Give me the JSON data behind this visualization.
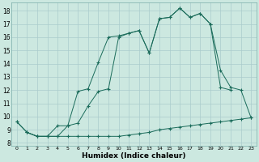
{
  "xlabel": "Humidex (Indice chaleur)",
  "background_color": "#cce8e0",
  "grid_color": "#aacccc",
  "line_color": "#1a6b5a",
  "xlim": [
    -0.5,
    23.5
  ],
  "ylim": [
    7.8,
    18.6
  ],
  "xticks": [
    0,
    1,
    2,
    3,
    4,
    5,
    6,
    7,
    8,
    9,
    10,
    11,
    12,
    13,
    14,
    15,
    16,
    17,
    18,
    19,
    20,
    21,
    22,
    23
  ],
  "yticks": [
    8,
    9,
    10,
    11,
    12,
    13,
    14,
    15,
    16,
    17,
    18
  ],
  "lineA_x": [
    0,
    1,
    2,
    3,
    4,
    5,
    6,
    7,
    8,
    9,
    10,
    11,
    12,
    13,
    14,
    15,
    16,
    17,
    18,
    19,
    20,
    21,
    22,
    23
  ],
  "lineA_y": [
    9.6,
    8.8,
    8.5,
    8.5,
    8.5,
    8.5,
    8.5,
    8.5,
    8.5,
    8.5,
    8.5,
    8.6,
    8.7,
    8.8,
    9.0,
    9.1,
    9.2,
    9.3,
    9.4,
    9.5,
    9.6,
    9.7,
    9.8,
    9.9
  ],
  "lineB_x": [
    0,
    1,
    2,
    3,
    4,
    5,
    6,
    7,
    8,
    9,
    10,
    11,
    12,
    13,
    14,
    15,
    16,
    17,
    18,
    19,
    20,
    21
  ],
  "lineB_y": [
    9.6,
    8.8,
    8.5,
    8.5,
    9.3,
    9.3,
    11.9,
    12.1,
    14.1,
    16.0,
    16.1,
    16.3,
    16.5,
    14.8,
    17.4,
    17.5,
    18.2,
    17.5,
    17.8,
    17.0,
    12.2,
    12.0
  ],
  "lineC_x": [
    1,
    2,
    3,
    4,
    5,
    6,
    7,
    8,
    9,
    10,
    11,
    12,
    13,
    14,
    15,
    16,
    17,
    18,
    19,
    20,
    21,
    22,
    23
  ],
  "lineC_y": [
    8.8,
    8.5,
    8.5,
    8.5,
    9.3,
    9.5,
    10.8,
    11.9,
    12.1,
    16.0,
    16.3,
    16.5,
    14.8,
    17.4,
    17.5,
    18.2,
    17.5,
    17.8,
    17.0,
    13.5,
    12.2,
    12.0,
    9.9
  ]
}
